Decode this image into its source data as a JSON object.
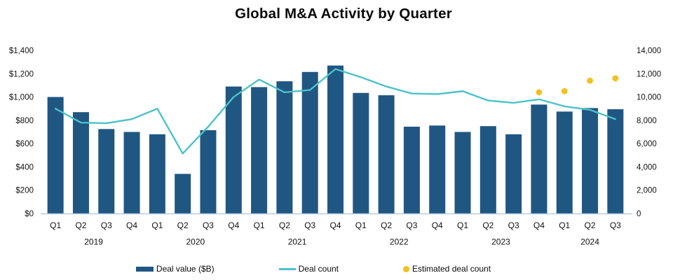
{
  "title": "Global M&A Activity by Quarter",
  "colors": {
    "bar": "#205682",
    "line": "#4BC2C9",
    "dot": "#F2C11E",
    "axis_line": "#B7CEE2",
    "text": "#111111"
  },
  "legend": {
    "items": [
      {
        "label": "Deal value ($B)",
        "marker": "bar-swatch"
      },
      {
        "label": "Deal count",
        "marker": "line-swatch"
      },
      {
        "label": "Estimated deal count",
        "marker": "dot-swatch"
      }
    ]
  },
  "chart_data": {
    "type": "bar",
    "title": "Global M&A Activity by Quarter",
    "categories": [
      "Q1",
      "Q2",
      "Q3",
      "Q4",
      "Q1",
      "Q2",
      "Q3",
      "Q4",
      "Q1",
      "Q2",
      "Q3",
      "Q4",
      "Q1",
      "Q2",
      "Q3",
      "Q4",
      "Q1",
      "Q2",
      "Q3",
      "Q4",
      "Q1",
      "Q2",
      "Q3"
    ],
    "year_groups": [
      {
        "label": "2019",
        "start": 0,
        "count": 4
      },
      {
        "label": "2020",
        "start": 4,
        "count": 4
      },
      {
        "label": "2021",
        "start": 8,
        "count": 4
      },
      {
        "label": "2022",
        "start": 12,
        "count": 4
      },
      {
        "label": "2023",
        "start": 16,
        "count": 4
      },
      {
        "label": "2024",
        "start": 20,
        "count": 3
      }
    ],
    "series": [
      {
        "name": "Deal value ($B)",
        "type": "bar",
        "axis": "left",
        "values": [
          1000,
          870,
          725,
          700,
          680,
          340,
          715,
          1090,
          1085,
          1135,
          1215,
          1270,
          1035,
          1015,
          745,
          755,
          700,
          750,
          680,
          935,
          875,
          905,
          895
        ]
      },
      {
        "name": "Deal count",
        "type": "line",
        "axis": "right",
        "values": [
          9000,
          7800,
          7750,
          8100,
          9000,
          5150,
          7450,
          10000,
          11500,
          10400,
          10600,
          12400,
          11700,
          10900,
          10300,
          10250,
          10500,
          9700,
          9500,
          9800,
          9200,
          8900,
          8100
        ]
      },
      {
        "name": "Estimated deal count",
        "type": "scatter",
        "axis": "right",
        "values": [
          null,
          null,
          null,
          null,
          null,
          null,
          null,
          null,
          null,
          null,
          null,
          null,
          null,
          null,
          null,
          null,
          null,
          null,
          null,
          10400,
          10500,
          11400,
          11600
        ]
      }
    ],
    "left_axis": {
      "label_format": "currency_billions",
      "min": 0,
      "max": 1400,
      "ticks": [
        "$1,400",
        "$1,200",
        "$1,000",
        "$800",
        "$600",
        "$400",
        "$200",
        "$0"
      ]
    },
    "right_axis": {
      "min": 0,
      "max": 14000,
      "ticks": [
        "14,000",
        "12,000",
        "10,000",
        "8,000",
        "6,000",
        "4,000",
        "2,000",
        "0"
      ]
    },
    "grid": false,
    "legend_position": "bottom"
  }
}
